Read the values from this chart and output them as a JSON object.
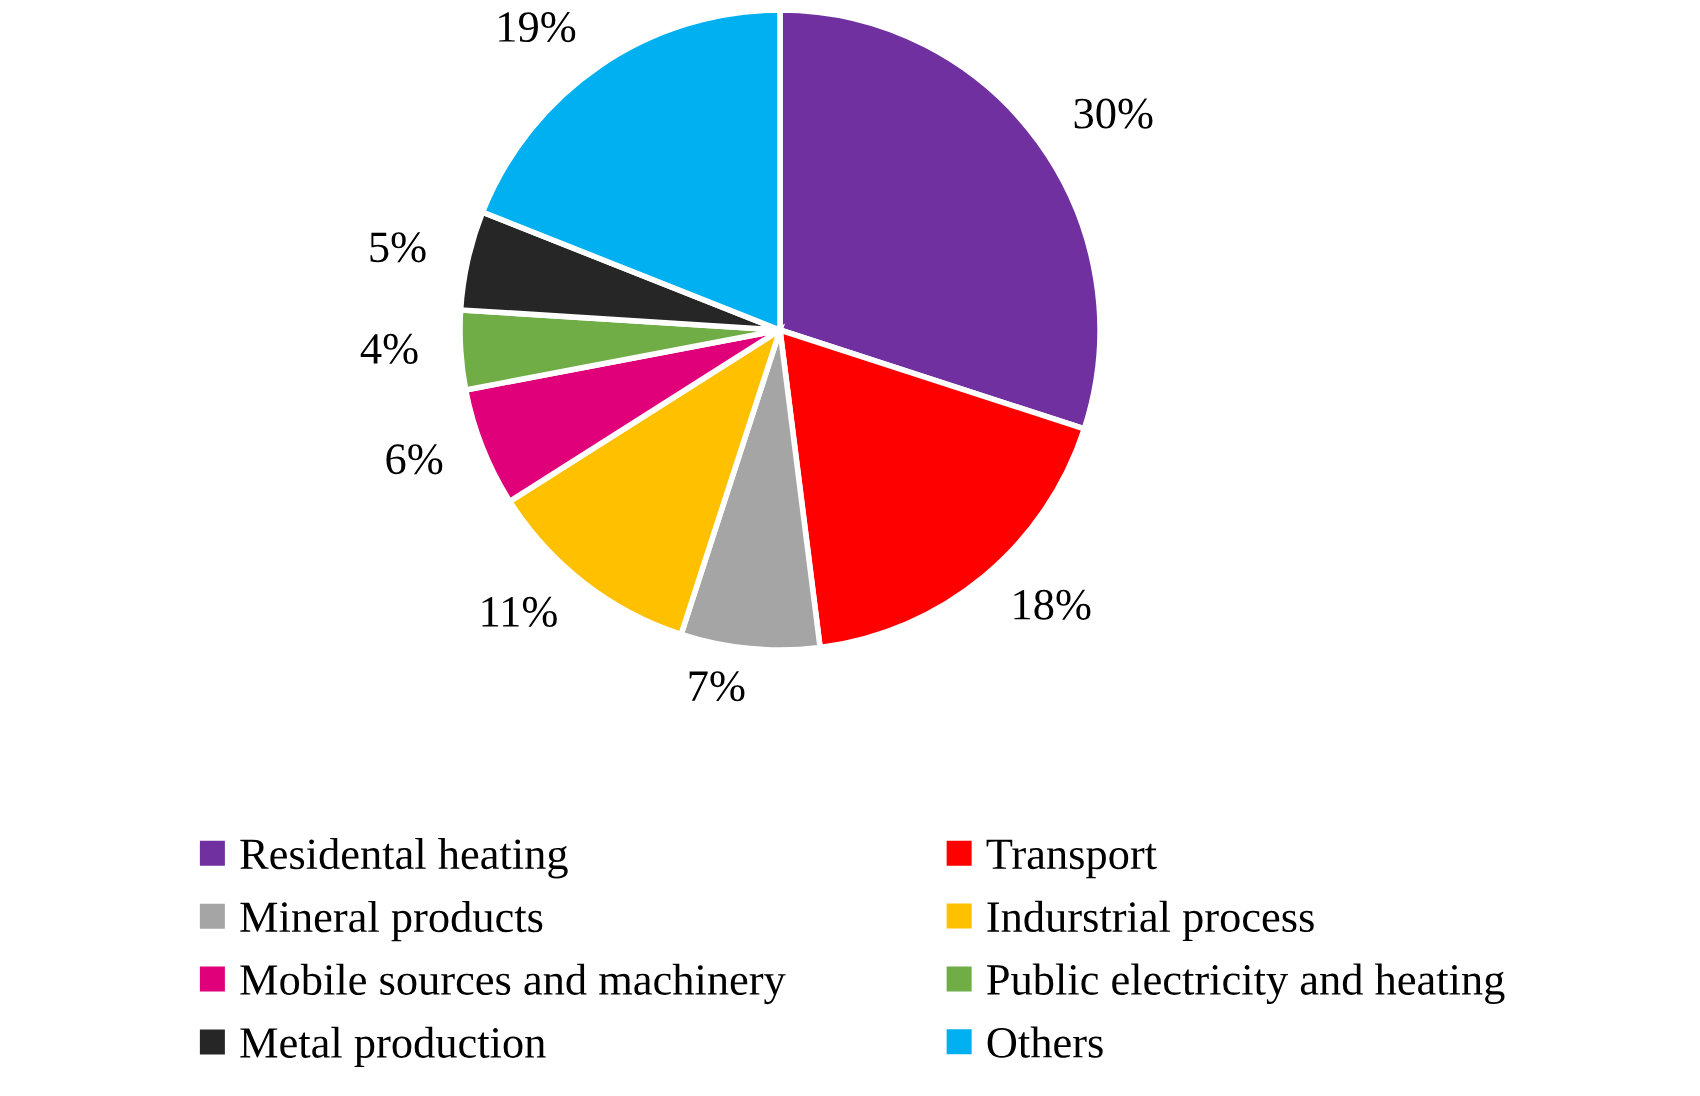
{
  "chart_data": {
    "type": "pie",
    "categories": [
      "Residental heating",
      "Transport",
      "Mineral products",
      "Indurstrial process",
      "Mobile sources and machinery",
      "Public electricity and heating",
      "Metal production",
      "Others"
    ],
    "values": [
      30,
      18,
      7,
      11,
      6,
      4,
      5,
      19
    ],
    "value_labels": [
      "30%",
      "18%",
      "7%",
      "11%",
      "6%",
      "4%",
      "5%",
      "19%"
    ],
    "colors": [
      "#7030a0",
      "#ff0000",
      "#a5a5a5",
      "#ffc000",
      "#e0007a",
      "#70ad47",
      "#262626",
      "#00b0f0"
    ],
    "legend": "bottom"
  }
}
